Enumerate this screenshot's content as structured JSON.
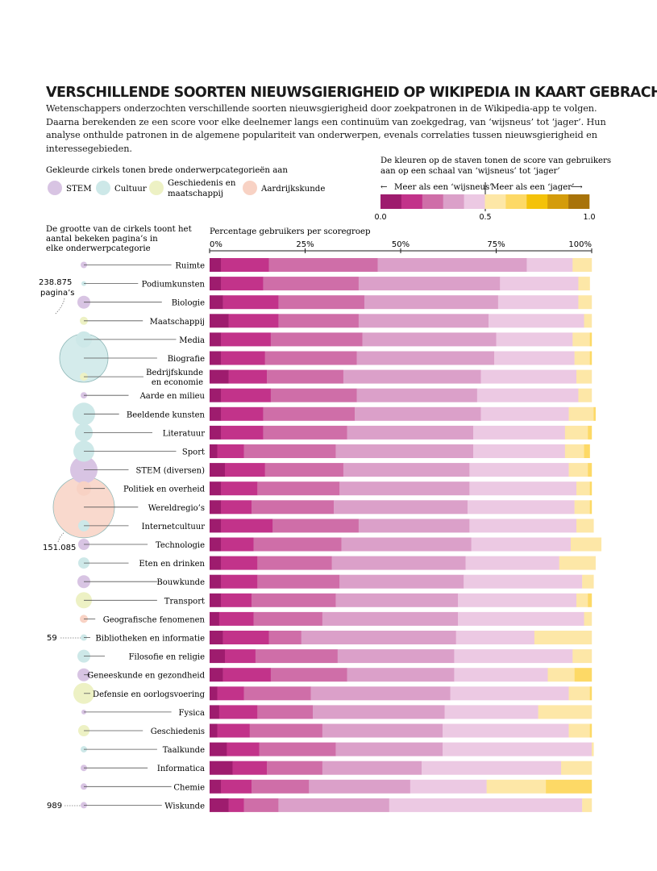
{
  "title": "VERSCHILLENDE SOORTEN NIEUWSGIERIGHEID OP WIKIPEDIA IN KAART GEBRACHT",
  "intro": "Wetenschappers onderzochten verschillende soorten nieuwsgierigheid door zoekpatronen in de Wikipedia-app te volgen. Daarna berekenden ze een score voor elke deelnemer langs een continuüm van zoekgedrag, van ‘wijsneus’ tot ‘jager’. Hun analyse onthulde patronen in de algemene populariteit van onderwerpen, evenals correlaties tussen nieuwsgierigheid en interessegebieden.",
  "category_legend": {
    "heading": "Gekleurde cirkels tonen brede onderwerpcategorieën aan",
    "items": [
      {
        "label": "STEM",
        "color": "#d8c4e3"
      },
      {
        "label": "Cultuur",
        "color": "#cde8e8"
      },
      {
        "label": "Geschiedenis en maatschappij",
        "color": "#edf1c4"
      },
      {
        "label": "Aardrijkskunde",
        "color": "#f8d2c4"
      }
    ]
  },
  "score_legend": {
    "heading": "De kleuren op de staven tonen de score van gebruikers aan op een schaal van ‘wijsneus’ tot ‘jager’",
    "left_label": "Meer als een ‘wijsneus’",
    "right_label": "Meer als een ‘jager’",
    "left_arrow": "←",
    "right_arrow": "⟶",
    "tick_labels": [
      "0.0",
      "0.5",
      "1.0"
    ]
  },
  "size_note": "De grootte van de cirkels toont het aantal bekeken pagina’s in elke onderwerpcategorie",
  "size_annotations": {
    "large": "238.875",
    "large_unit": "pagina’s",
    "medium": "151.085",
    "small1": "59",
    "small2": "989"
  },
  "chart_data": {
    "type": "bar",
    "stacked": true,
    "orientation": "horizontal",
    "xlabel": "Percentage gebruikers per scoregroep",
    "x_ticks": [
      "0%",
      "25%",
      "50%",
      "75%",
      "100%"
    ],
    "xlim": [
      0,
      100
    ],
    "segment_colors": [
      "#9e1c6e",
      "#c2338a",
      "#cf6ea8",
      "#dba0c9",
      "#ecc9e3",
      "#fde7a7",
      "#fdd966",
      "#f4c20a",
      "#d49c0b",
      "#a8730a"
    ],
    "categories": [
      "Ruimte",
      "Podiumkunsten",
      "Biologie",
      "Maatschappij",
      "Media",
      "Biografie",
      "Bedrijfskunde en economie",
      "Aarde en milieu",
      "Beeldende kunsten",
      "Literatuur",
      "Sport",
      "STEM (diversen)",
      "Politiek en overheid",
      "Wereldregio’s",
      "Internetcultuur",
      "Technologie",
      "Eten en drinken",
      "Bouwkunde",
      "Transport",
      "Geografische fenomenen",
      "Bibliotheken en informatie",
      "Filosofie en religie",
      "Geneeskunde en gezondheid",
      "Defensie en oorlogsvoering",
      "Fysica",
      "Geschiedenis",
      "Taalkunde",
      "Informatica",
      "Chemie",
      "Wiskunde"
    ],
    "category_types": [
      "STEM",
      "Cultuur",
      "STEM",
      "Geschiedenis en maatschappij",
      "Cultuur",
      "Cultuur",
      "Geschiedenis en maatschappij",
      "STEM",
      "Cultuur",
      "Cultuur",
      "Cultuur",
      "STEM",
      "Aardrijkskunde",
      "Aardrijkskunde",
      "Cultuur",
      "STEM",
      "Cultuur",
      "STEM",
      "Geschiedenis en maatschappij",
      "Aardrijkskunde",
      "Cultuur",
      "Cultuur",
      "STEM",
      "Geschiedenis en maatschappij",
      "STEM",
      "Geschiedenis en maatschappij",
      "Cultuur",
      "STEM",
      "STEM",
      "STEM"
    ],
    "circle_sizes": [
      4,
      3,
      8,
      5,
      10,
      30,
      5,
      4,
      14,
      11,
      13,
      17,
      9,
      38,
      7,
      7,
      7,
      8,
      10,
      5,
      4,
      8,
      8,
      13,
      3,
      7,
      4,
      4,
      4,
      4
    ],
    "values": [
      [
        3,
        12.5,
        28.5,
        39,
        12,
        5
      ],
      [
        3,
        11,
        25,
        37,
        20.5,
        3
      ],
      [
        3.5,
        14.5,
        22.5,
        35,
        21,
        3.5
      ],
      [
        5,
        13,
        21,
        34,
        25,
        2
      ],
      [
        3,
        13,
        24,
        35,
        20,
        4.5,
        0.5
      ],
      [
        3,
        11.5,
        24,
        36,
        21,
        4,
        0.5
      ],
      [
        5,
        10,
        20,
        36,
        25,
        4
      ],
      [
        3,
        13,
        22.5,
        31.5,
        26.5,
        3.5
      ],
      [
        3,
        11,
        24,
        33,
        23,
        6.5,
        0.5
      ],
      [
        3,
        11,
        22,
        33,
        24,
        6,
        1
      ],
      [
        2,
        7,
        24,
        36,
        24,
        5,
        1.5
      ],
      [
        4,
        10.5,
        20.5,
        33,
        26,
        5,
        1
      ],
      [
        3,
        9.5,
        21.5,
        34,
        28,
        3.5,
        0.5
      ],
      [
        3,
        8,
        21.5,
        35,
        28,
        4,
        0.5
      ],
      [
        3,
        13.5,
        22.5,
        29,
        28,
        4.5
      ],
      [
        3,
        8.5,
        23,
        34,
        26,
        8
      ],
      [
        3,
        9.5,
        19.5,
        35,
        24.5,
        9.5
      ],
      [
        3,
        9.5,
        21.5,
        32.5,
        31,
        3
      ],
      [
        3,
        8,
        22,
        32,
        31,
        3,
        1
      ],
      [
        2.5,
        9,
        18,
        35.5,
        33,
        2
      ],
      [
        3.5,
        12,
        8.5,
        40.5,
        20.5,
        15
      ],
      [
        4,
        8,
        21.5,
        30.5,
        31,
        5
      ],
      [
        3.5,
        12.5,
        20,
        28,
        24.5,
        7,
        4.5
      ],
      [
        2,
        7,
        17.5,
        36.5,
        31,
        5.5,
        0.5
      ],
      [
        2.5,
        10,
        14.5,
        34.5,
        24.5,
        14
      ],
      [
        2,
        8.5,
        19,
        31.5,
        33,
        5.5,
        0.5
      ],
      [
        4.5,
        8.5,
        20,
        28,
        39,
        0.5
      ],
      [
        6,
        9,
        14.5,
        26,
        36.5,
        8
      ],
      [
        3,
        8,
        15,
        26.5,
        20,
        15.5,
        12
      ],
      [
        5,
        4,
        9,
        29,
        50.5,
        2.5
      ]
    ]
  }
}
